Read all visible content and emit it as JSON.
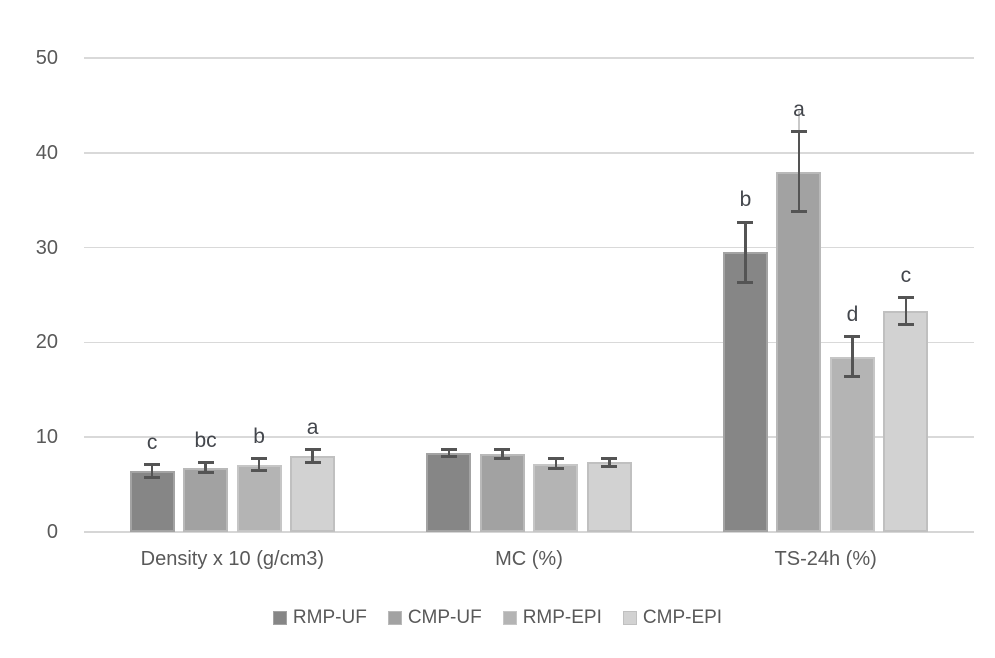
{
  "chart_data": {
    "type": "bar",
    "title": "",
    "xlabel": "",
    "ylabel": "",
    "categories": [
      "Density x 10 (g/cm3)",
      "MC (%)",
      "TS-24h (%)"
    ],
    "series": [
      {
        "name": "RMP-UF",
        "fill": "#868686",
        "border": "#a3a3a3",
        "values": [
          6.4,
          8.3,
          29.5
        ],
        "errors": [
          0.7,
          0.35,
          3.2
        ],
        "letters": [
          "c",
          "",
          "b"
        ]
      },
      {
        "name": "CMP-UF",
        "fill": "#a2a2a2",
        "border": "#b9b9b9",
        "values": [
          6.8,
          8.2,
          38.0
        ],
        "errors": [
          0.5,
          0.45,
          4.2
        ],
        "letters": [
          "bc",
          "",
          "a"
        ]
      },
      {
        "name": "RMP-EPI",
        "fill": "#b4b4b4",
        "border": "#c6c6c6",
        "values": [
          7.1,
          7.2,
          18.5
        ],
        "errors": [
          0.65,
          0.55,
          2.1
        ],
        "letters": [
          "b",
          "",
          "d"
        ]
      },
      {
        "name": "CMP-EPI",
        "fill": "#d2d2d2",
        "border": "#c0c0c0",
        "values": [
          8.0,
          7.35,
          23.3
        ],
        "errors": [
          0.7,
          0.45,
          1.4
        ],
        "letters": [
          "a",
          "",
          "c"
        ]
      }
    ],
    "ylim": [
      0,
      50
    ],
    "yticks": [
      0,
      10,
      20,
      30,
      40,
      50
    ],
    "grid": true,
    "legend_position": "bottom",
    "stem_overlay": {
      "category_index": 2,
      "series_index": 1,
      "from_value": 36.5,
      "to_value": 44.4
    },
    "colors": {
      "gridline": "#d9d9d9",
      "baseline": "#d6d6d6",
      "axis_text": "#595959",
      "category_text": "#595959",
      "legend_text": "#595959",
      "error_bar": "#545454",
      "letter_text": "#43464c",
      "stem": "#c9c9c9",
      "background": "#ffffff"
    }
  }
}
